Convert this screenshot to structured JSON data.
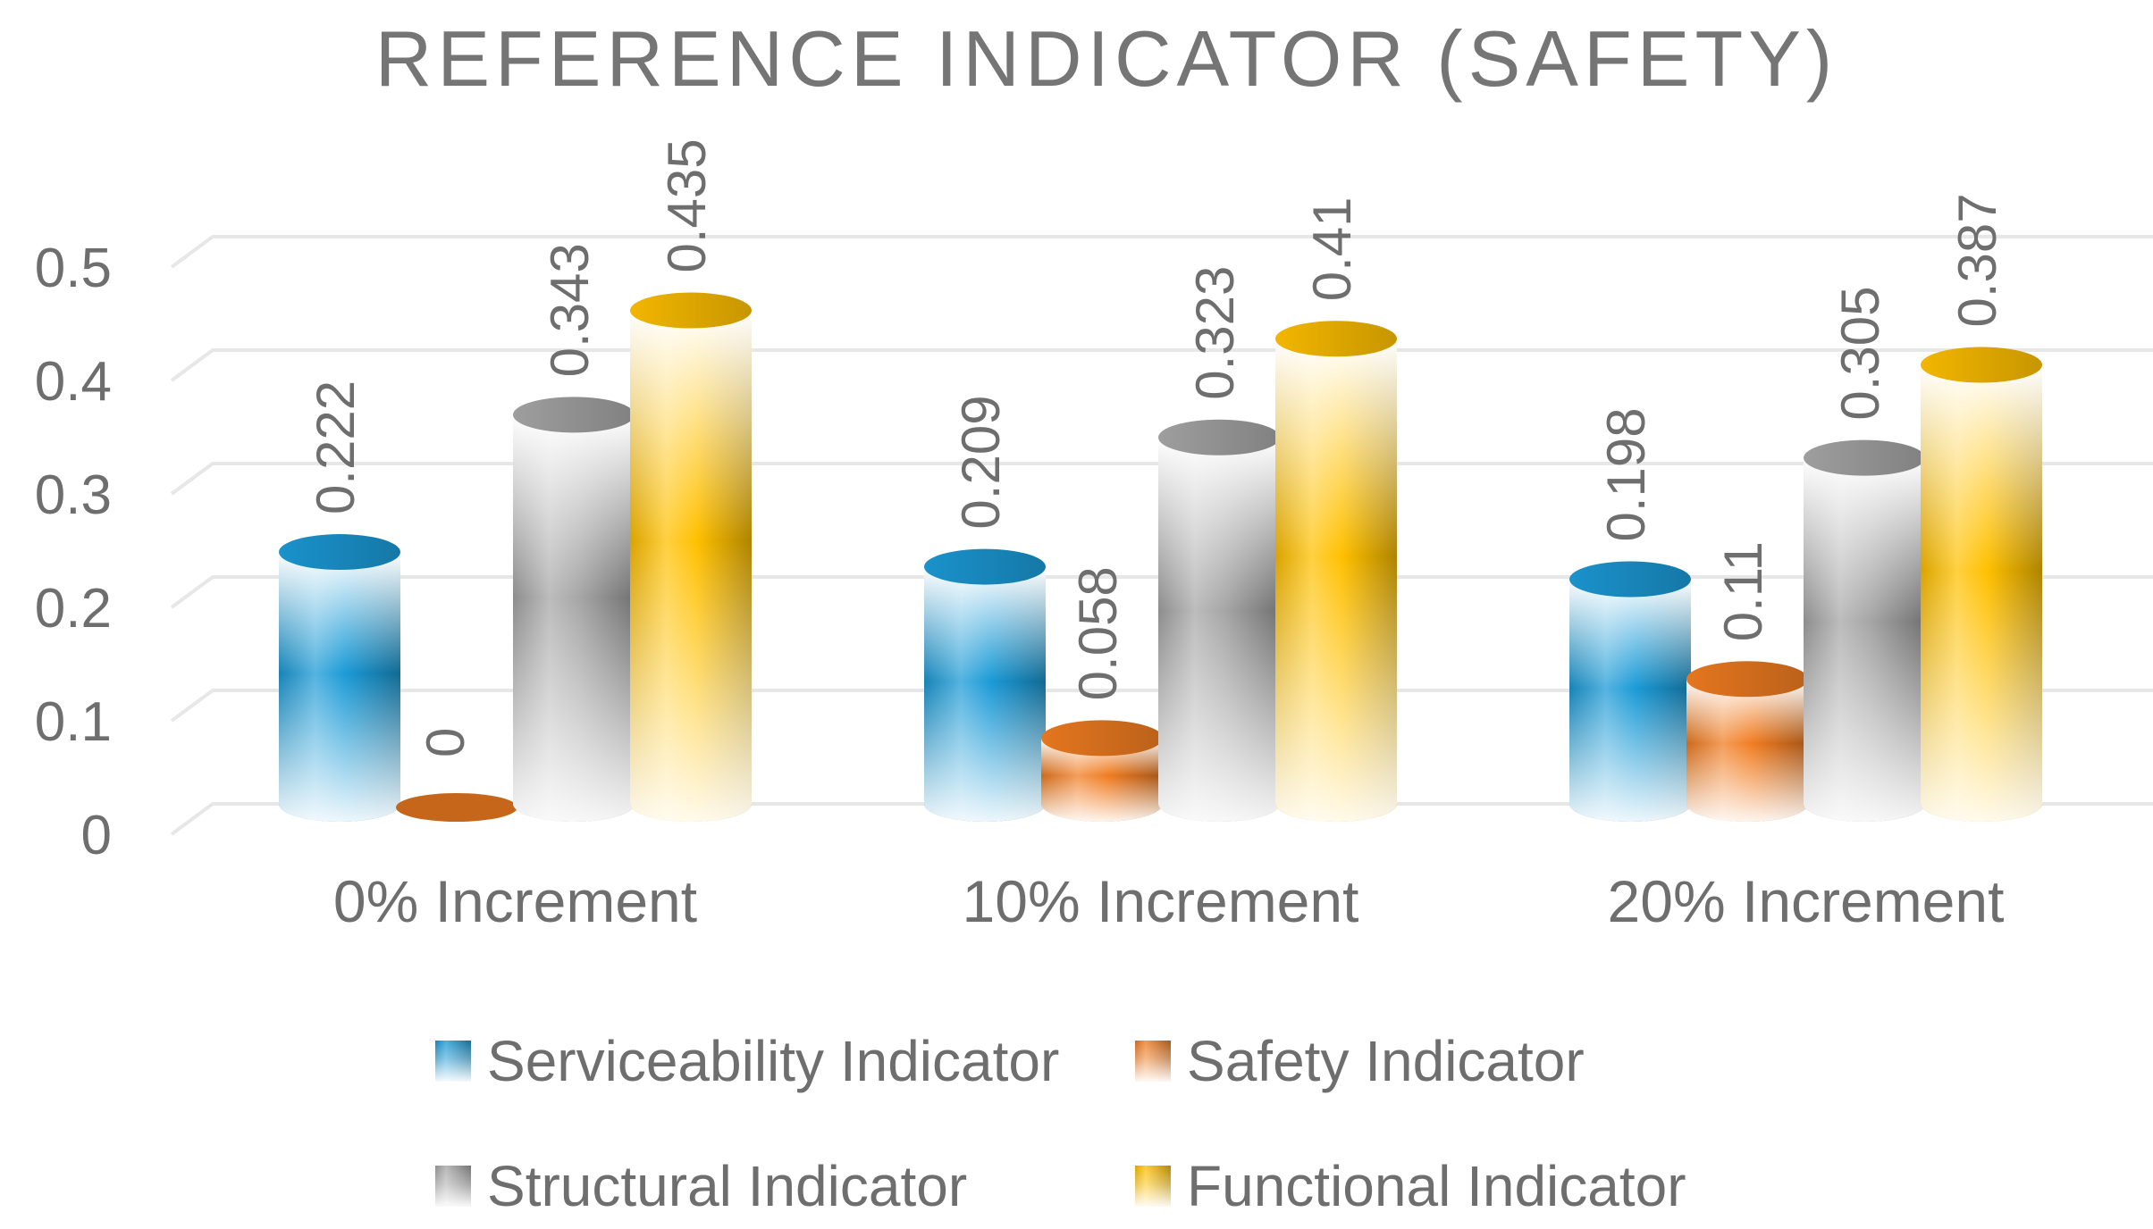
{
  "chart_data": {
    "type": "bar",
    "title": "REFERENCE INDICATOR (SAFETY)",
    "categories": [
      "0% Increment",
      "10% Increment",
      "20% Increment"
    ],
    "series": [
      {
        "name": "Serviceability Indicator",
        "values": [
          0.222,
          0.209,
          0.198
        ],
        "value_labels": [
          "0.222",
          "0.209",
          "0.198"
        ],
        "color": "#1b9ad6"
      },
      {
        "name": "Safety Indicator",
        "values": [
          0,
          0.058,
          0.11
        ],
        "value_labels": [
          "0",
          "0.058",
          "0.11"
        ],
        "color": "#f07c21"
      },
      {
        "name": "Structural Indicator",
        "values": [
          0.343,
          0.323,
          0.305
        ],
        "value_labels": [
          "0.343",
          "0.323",
          "0.305"
        ],
        "color": "#a6a6a6"
      },
      {
        "name": "Functional Indicator",
        "values": [
          0.435,
          0.41,
          0.387
        ],
        "value_labels": [
          "0.435",
          "0.41",
          "0.387"
        ],
        "color": "#ffc000"
      }
    ],
    "ylim": [
      0,
      0.5
    ],
    "yticks": [
      "0",
      "0.1",
      "0.2",
      "0.3",
      "0.4",
      "0.5"
    ],
    "xlabel": "",
    "ylabel": "",
    "grid": true,
    "legend": "bottom",
    "style": "3d-cylinder"
  }
}
